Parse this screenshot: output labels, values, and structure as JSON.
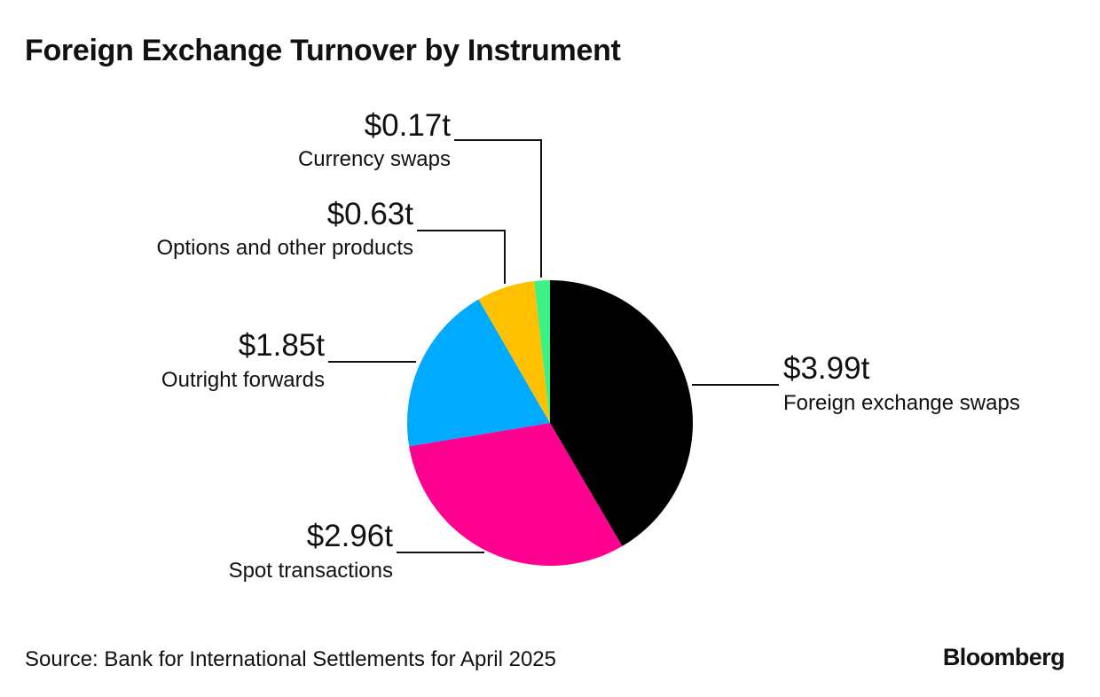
{
  "title": "Foreign Exchange Turnover by Instrument",
  "source": "Source: Bank for International Settlements for April 2025",
  "brand": "Bloomberg",
  "chart_data": {
    "type": "pie",
    "title": "Foreign Exchange Turnover by Instrument",
    "slices": [
      {
        "label": "Foreign exchange swaps",
        "value": 3.99,
        "value_label": "$3.99t",
        "color": "#000000"
      },
      {
        "label": "Spot transactions",
        "value": 2.96,
        "value_label": "$2.96t",
        "color": "#ff0090"
      },
      {
        "label": "Outright forwards",
        "value": 1.85,
        "value_label": "$1.85t",
        "color": "#00aaff"
      },
      {
        "label": "Options and other products",
        "value": 0.63,
        "value_label": "$0.63t",
        "color": "#ffc000"
      },
      {
        "label": "Currency swaps",
        "value": 0.17,
        "value_label": "$0.17t",
        "color": "#3cf284"
      }
    ],
    "start": "12 o'clock",
    "direction": "clockwise",
    "legend": "none"
  }
}
